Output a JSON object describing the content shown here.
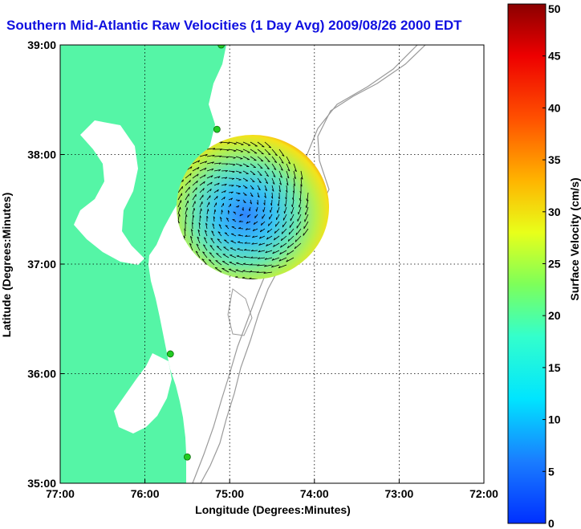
{
  "chart_data": {
    "type": "heatmap",
    "title": "Southern Mid-Atlantic Raw Velocities (1 Day Avg) 2009/08/26 2000 EDT",
    "xlabel": "Longitude (Degrees:Minutes)",
    "ylabel": "Latitude (Degrees:Minutes)",
    "x_range": [
      -77,
      -72
    ],
    "y_range": [
      35,
      39
    ],
    "x_ticks": [
      {
        "value": -77,
        "label": "77:00"
      },
      {
        "value": -76,
        "label": "76:00"
      },
      {
        "value": -75,
        "label": "75:00"
      },
      {
        "value": -74,
        "label": "74:00"
      },
      {
        "value": -73,
        "label": "73:00"
      },
      {
        "value": -72,
        "label": "72:00"
      }
    ],
    "y_ticks": [
      {
        "value": 35,
        "label": "35:00"
      },
      {
        "value": 36,
        "label": "36:00"
      },
      {
        "value": 37,
        "label": "37:00"
      },
      {
        "value": 38,
        "label": "38:00"
      },
      {
        "value": 39,
        "label": "39:00"
      }
    ],
    "grid": true,
    "colorbar": {
      "label": "Surface Velocity (cm/s)",
      "range": [
        0,
        50
      ],
      "ticks": [
        "0",
        "5",
        "10",
        "15",
        "20",
        "25",
        "30",
        "35",
        "40",
        "45",
        "50"
      ]
    },
    "velocity_field": {
      "center": [
        -74.9,
        37.5
      ],
      "radius_deg": 1.1,
      "typical_speed_cms": [
        5,
        25
      ],
      "edge_speed_cms": [
        30,
        45
      ]
    },
    "stations": [
      {
        "lon": -75.1,
        "lat": 39.0
      },
      {
        "lon": -75.15,
        "lat": 38.23
      },
      {
        "lon": -75.7,
        "lat": 36.18
      },
      {
        "lon": -75.5,
        "lat": 35.24
      }
    ],
    "colors": {
      "land": "#55f5a6",
      "water": "#ffffff",
      "bathymetry": "#9a9a9a",
      "title": "#1010e0",
      "station": "#22cc22"
    }
  }
}
